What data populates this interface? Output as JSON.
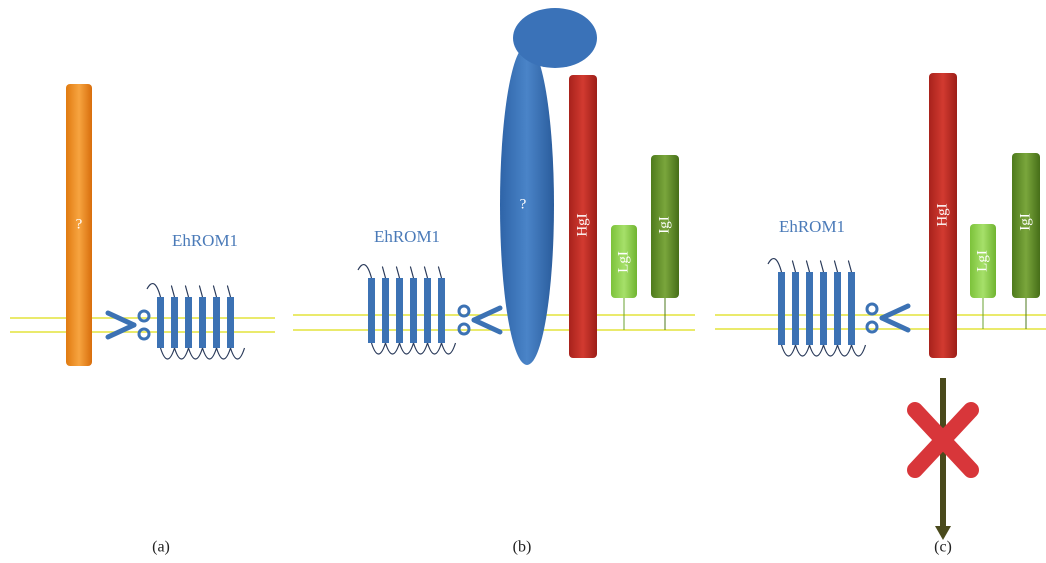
{
  "panels": [
    {
      "caption": "(a)",
      "enzyme": "EhROM1",
      "substrate": "?"
    },
    {
      "caption": "(b)",
      "enzyme": "EhROM1",
      "partner": "?",
      "heavy": "HgI",
      "light": "LgI",
      "intermediate": "IgI"
    },
    {
      "caption": "(c)",
      "enzyme": "EhROM1",
      "heavy": "HgI",
      "light": "LgI",
      "intermediate": "IgI"
    }
  ]
}
